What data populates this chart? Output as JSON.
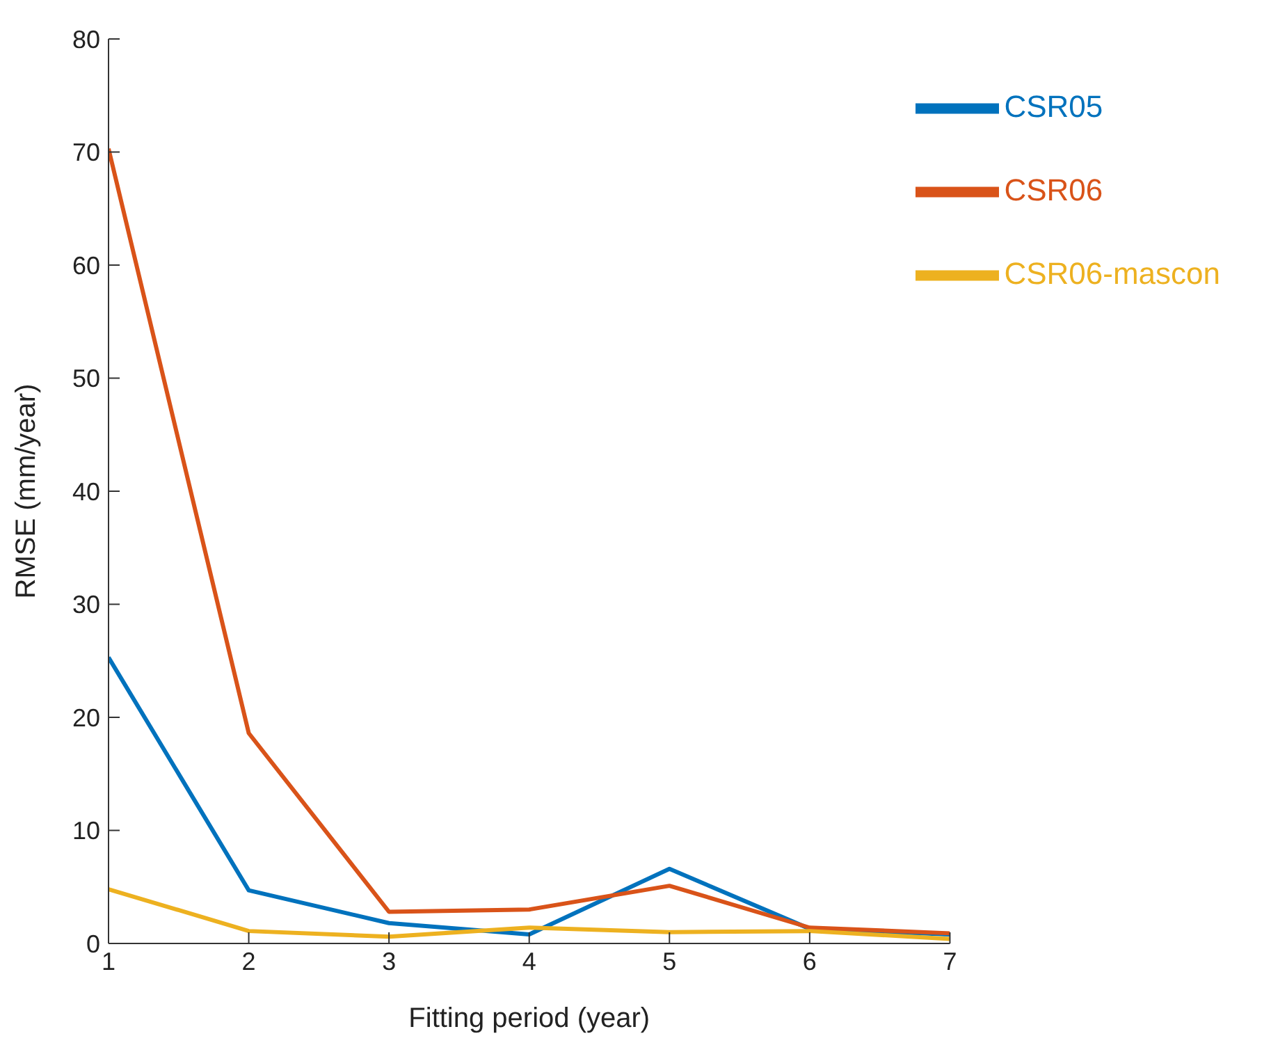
{
  "chart_data": {
    "type": "line",
    "xlabel": "Fitting period (year)",
    "ylabel": "RMSE (mm/year)",
    "x": [
      1,
      2,
      3,
      4,
      5,
      6,
      7
    ],
    "series": [
      {
        "name": "CSR05",
        "color": "#0072bd",
        "values": [
          25.3,
          4.7,
          1.8,
          0.8,
          6.6,
          1.3,
          0.8
        ]
      },
      {
        "name": "CSR06",
        "color": "#d95319",
        "values": [
          70.3,
          18.6,
          2.8,
          3.0,
          5.1,
          1.4,
          0.9
        ]
      },
      {
        "name": "CSR06-mascon",
        "color": "#edb120",
        "values": [
          4.8,
          1.1,
          0.6,
          1.4,
          1.0,
          1.1,
          0.4
        ]
      }
    ],
    "xlim": [
      1,
      7
    ],
    "xticks": [
      1,
      2,
      3,
      4,
      5,
      6,
      7
    ],
    "ylim": [
      0,
      80
    ],
    "yticks": [
      0,
      10,
      20,
      30,
      40,
      50,
      60,
      70,
      80
    ],
    "grid": false,
    "legend": "top right",
    "marker": "none",
    "line_style": "solid"
  }
}
